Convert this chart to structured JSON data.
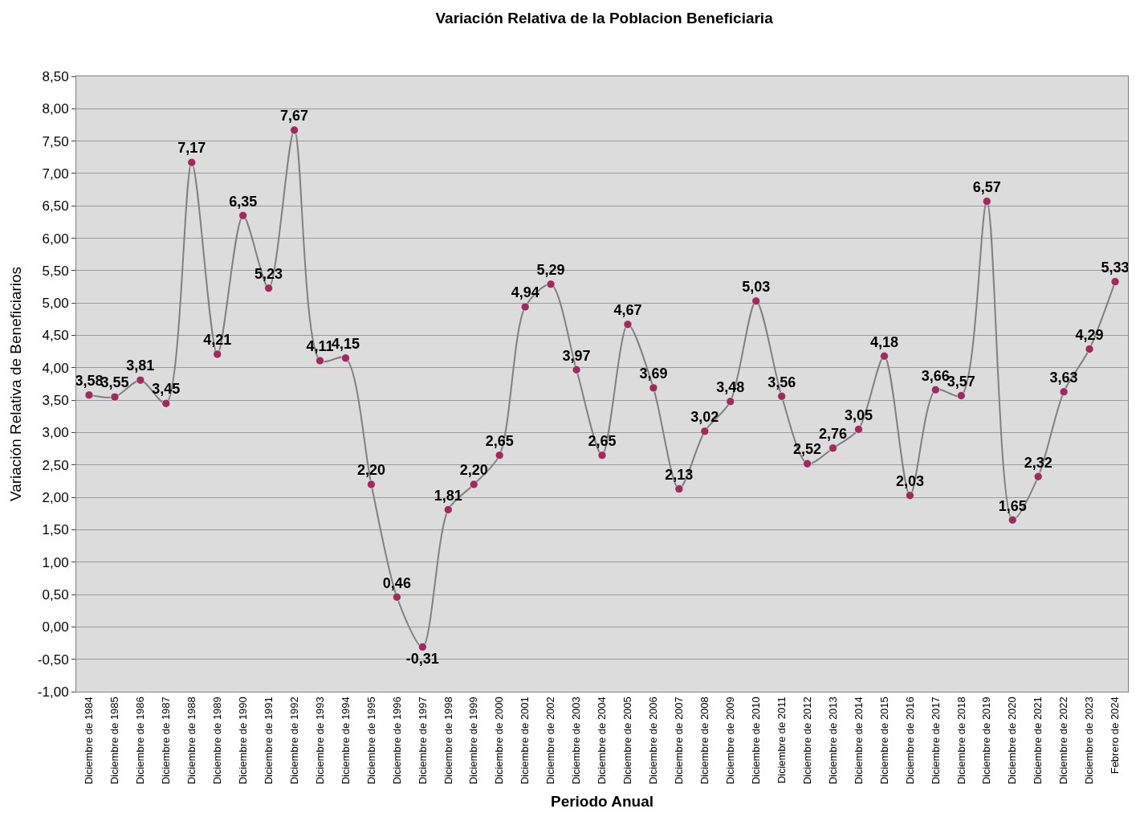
{
  "chart_data": {
    "type": "line",
    "title": "Variación Relativa de la Poblacion Beneficiaria",
    "xlabel": "Periodo Anual",
    "ylabel": "Variación Relativa de Beneficiarios",
    "categories": [
      "Diciembre de 1984",
      "Diciembre de 1985",
      "Diciembre de 1986",
      "Diciembre de 1987",
      "Diciembre de 1988",
      "Diciembre de 1989",
      "Diciembre de 1990",
      "Diciembre de 1991",
      "Diciembre de 1992",
      "Diciembre de 1993",
      "Diciembre de 1994",
      "Diciembre de 1995",
      "Diciembre de 1996",
      "Diciembre de 1997",
      "Diciembre de 1998",
      "Diciembre de 1999",
      "Diciembre de 2000",
      "Diciembre de 2001",
      "Diciembre de 2002",
      "Diciembre de 2003",
      "Diciembre de 2004",
      "Diciembre de 2005",
      "Diciembre de 2006",
      "Diciembre de 2007",
      "Diciembre de 2008",
      "Diciembre de 2009",
      "Diciembre de 2010",
      "Diciembre de 2011",
      "Diciembre de 2012",
      "Diciembre de 2013",
      "Diciembre de 2014",
      "Diciembre de 2015",
      "Diciembre de 2016",
      "Diciembre de 2017",
      "Diciembre de 2018",
      "Diciembre de 2019",
      "Diciembre de 2020",
      "Diciembre de 2021",
      "Diciembre de 2022",
      "Diciembre de 2023",
      "Febrero de 2024"
    ],
    "series": [
      {
        "color": "#808080",
        "colors": [
          "#9b2d5e",
          "#9b2d5e",
          "#9b2d5e",
          "#9b2d5e",
          "#9b2d5e",
          "#9b2d5e",
          "#9b2d5e",
          "#9b2d5e",
          "#9b2d5e",
          "#9b2d5e",
          "#9b2d5e",
          "#9b2d5e",
          "#9b2d5e",
          "#9b2d5e",
          "#9b2d5e",
          "#9b2d5e",
          "#9b2d5e",
          "#9b2d5e",
          "#9b2d5e",
          "#9b2d5e",
          "#9b2d5e",
          "#9b2d5e",
          "#9b2d5e",
          "#9b2d5e",
          "#9b2d5e",
          "#9b2d5e",
          "#9b2d5e",
          "#9b2d5e",
          "#9b2d5e",
          "#9b2d5e",
          "#9b2d5e",
          "#9b2d5e",
          "#9b2d5e",
          "#9b2d5e",
          "#9b2d5e",
          "#9b2d5e",
          "#9b2d5e",
          "#9b2d5e",
          "#9b2d5e",
          "#9b2d5e",
          "#9b2d5e"
        ],
        "values": [
          3.58,
          3.55,
          3.81,
          3.45,
          7.17,
          4.21,
          6.35,
          5.23,
          7.67,
          4.11,
          4.15,
          2.2,
          0.46,
          -0.31,
          1.81,
          2.2,
          2.65,
          4.94,
          5.29,
          3.97,
          2.65,
          4.67,
          3.69,
          2.13,
          3.02,
          3.48,
          5.03,
          3.56,
          2.52,
          2.76,
          3.05,
          4.18,
          2.03,
          3.66,
          3.57,
          6.57,
          1.65,
          2.32,
          3.63,
          4.29,
          5.33
        ],
        "value_labels": [
          "3,58",
          "3,55",
          "3,81",
          "3,45",
          "7,17",
          "4,21",
          "6,35",
          "5,23",
          "7,67",
          "4,11",
          "4,15",
          "2,20",
          "0,46",
          "-0,31",
          "1,81",
          "2,20",
          "2,65",
          "4,94",
          "5,29",
          "3,97",
          "2,65",
          "4,67",
          "3,69",
          "2,13",
          "3,02",
          "3,48",
          "5,03",
          "3,56",
          "2,52",
          "2,76",
          "3,05",
          "4,18",
          "2,03",
          "3,66",
          "3,57",
          "6,57",
          "1,65",
          "2,32",
          "3,63",
          "4,29",
          "5,33"
        ]
      }
    ],
    "ylim": [
      -1,
      8.5
    ],
    "yticks": [
      {
        "value": -1,
        "label": "-1,00"
      },
      {
        "value": -0.5,
        "label": "-0,50"
      },
      {
        "value": 0,
        "label": "0,00"
      },
      {
        "value": 0.5,
        "label": "0,50"
      },
      {
        "value": 1,
        "label": "1,00"
      },
      {
        "value": 1.5,
        "label": "1,50"
      },
      {
        "value": 2,
        "label": "2,00"
      },
      {
        "value": 2.5,
        "label": "2,50"
      },
      {
        "value": 3,
        "label": "3,00"
      },
      {
        "value": 3.5,
        "label": "3,50"
      },
      {
        "value": 4,
        "label": "4,00"
      },
      {
        "value": 4.5,
        "label": "4,50"
      },
      {
        "value": 5,
        "label": "5,00"
      },
      {
        "value": 5.5,
        "label": "5,50"
      },
      {
        "value": 6,
        "label": "6,00"
      },
      {
        "value": 6.5,
        "label": "6,50"
      },
      {
        "value": 7,
        "label": "7,00"
      },
      {
        "value": 7.5,
        "label": "7,50"
      },
      {
        "value": 8,
        "label": "8,00"
      },
      {
        "value": 8.5,
        "label": "8,50"
      }
    ],
    "grid": "y",
    "marker": "circle",
    "line_style": "solid",
    "legend": false
  }
}
